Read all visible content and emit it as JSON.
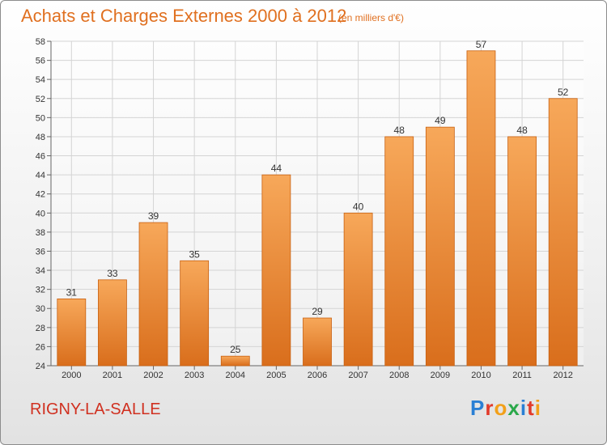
{
  "header": {
    "title": "Achats et Charges Externes 2000 à 2012",
    "subtitle": "(en milliers d'€)"
  },
  "footer": {
    "commune": "RIGNY-LA-SALLE",
    "logo_text": "Proxiti",
    "logo_colors": [
      "#2a7fd4",
      "#e23a2a",
      "#f2a01a",
      "#2aa84a",
      "#2a7fd4",
      "#e23a2a",
      "#f2a01a"
    ]
  },
  "colors": {
    "bar_top": "#f7a85a",
    "bar_bottom": "#d96e1c",
    "bar_edge": "#c86010",
    "title": "#e07020",
    "commune": "#d03020",
    "grid": "#d4d4d4"
  },
  "chart_data": {
    "type": "bar",
    "title": "Achats et Charges Externes 2000 à 2012",
    "subtitle": "(en milliers d'€)",
    "categories": [
      "2000",
      "2001",
      "2002",
      "2003",
      "2004",
      "2005",
      "2006",
      "2007",
      "2008",
      "2009",
      "2010",
      "2011",
      "2012"
    ],
    "values": [
      31,
      33,
      39,
      35,
      25,
      44,
      29,
      40,
      48,
      49,
      57,
      48,
      52
    ],
    "ylim": [
      24,
      58
    ],
    "yticks": [
      24,
      26,
      28,
      30,
      32,
      34,
      36,
      38,
      40,
      42,
      44,
      46,
      48,
      50,
      52,
      54,
      56,
      58
    ],
    "xlabel": "",
    "ylabel": "",
    "grid": true,
    "data_labels": true
  }
}
